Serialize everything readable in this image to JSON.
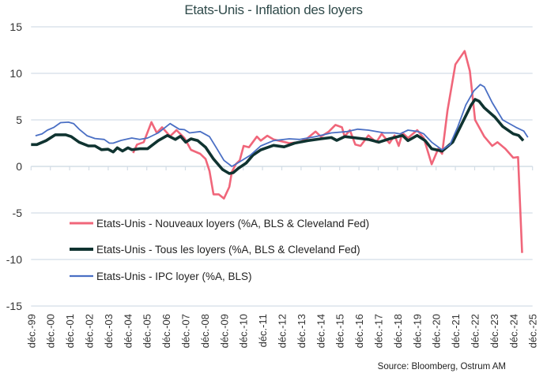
{
  "chart_data": {
    "type": "line",
    "title": "Etats-Unis - Inflation  des loyers",
    "source": "Source: Bloomberg, Ostrum AM",
    "ylim": [
      -15,
      15
    ],
    "yticks": [
      15,
      10,
      5,
      0,
      -5,
      -10,
      -15
    ],
    "xlim": [
      1999.92,
      2025.92
    ],
    "xtick_labels": [
      "déc.-99",
      "déc.-00",
      "déc.-01",
      "déc.-02",
      "déc.-03",
      "déc.-04",
      "déc.-05",
      "déc.-06",
      "déc.-07",
      "déc.-08",
      "déc.-09",
      "déc.-10",
      "déc.-11",
      "déc.-12",
      "déc.-13",
      "déc.-14",
      "déc.-15",
      "déc.-16",
      "déc.-17",
      "déc.-18",
      "déc.-19",
      "déc.-20",
      "déc.-21",
      "déc.-22",
      "déc.-23",
      "déc.-24",
      "déc.-25"
    ],
    "grid": "horizontal",
    "legend_placement": "bottom-left inside",
    "series": [
      {
        "name": "Etats-Unis - Nouveaux loyers (%A, BLS & Cleveland Fed)",
        "color": "#f0667a",
        "points": [
          [
            2005.21,
            1.44
          ],
          [
            2005.41,
            2.35
          ],
          [
            2005.76,
            2.6
          ],
          [
            2006.16,
            4.75
          ],
          [
            2006.44,
            3.6
          ],
          [
            2006.71,
            4.2
          ],
          [
            2007.13,
            3.25
          ],
          [
            2007.46,
            3.9
          ],
          [
            2007.87,
            3.05
          ],
          [
            2008.21,
            1.78
          ],
          [
            2008.69,
            1.36
          ],
          [
            2008.97,
            0.8
          ],
          [
            2009.17,
            -0.48
          ],
          [
            2009.38,
            -3.0
          ],
          [
            2009.65,
            -3.0
          ],
          [
            2009.92,
            -3.45
          ],
          [
            2010.2,
            -2.2
          ],
          [
            2010.33,
            -0.6
          ],
          [
            2010.53,
            0.23
          ],
          [
            2010.74,
            0.65
          ],
          [
            2010.94,
            2.2
          ],
          [
            2011.22,
            2.06
          ],
          [
            2011.63,
            3.2
          ],
          [
            2011.83,
            2.77
          ],
          [
            2012.17,
            3.3
          ],
          [
            2012.49,
            2.9
          ],
          [
            2013.31,
            2.5
          ],
          [
            2013.85,
            2.6
          ],
          [
            2014.26,
            3.05
          ],
          [
            2014.67,
            3.75
          ],
          [
            2014.95,
            3.2
          ],
          [
            2015.36,
            3.75
          ],
          [
            2015.7,
            4.46
          ],
          [
            2016.04,
            4.2
          ],
          [
            2016.18,
            3.2
          ],
          [
            2016.45,
            3.9
          ],
          [
            2016.73,
            2.35
          ],
          [
            2017.0,
            2.2
          ],
          [
            2017.41,
            3.33
          ],
          [
            2017.82,
            2.6
          ],
          [
            2018.1,
            3.5
          ],
          [
            2018.5,
            2.5
          ],
          [
            2018.77,
            3.33
          ],
          [
            2018.98,
            2.2
          ],
          [
            2019.18,
            3.6
          ],
          [
            2019.46,
            3.05
          ],
          [
            2019.94,
            3.9
          ],
          [
            2020.28,
            3.05
          ],
          [
            2020.69,
            0.23
          ],
          [
            2021.03,
            1.9
          ],
          [
            2021.23,
            1.36
          ],
          [
            2021.51,
            6.0
          ],
          [
            2021.92,
            10.96
          ],
          [
            2022.4,
            12.4
          ],
          [
            2022.67,
            10.25
          ],
          [
            2022.94,
            5.0
          ],
          [
            2023.42,
            3.2
          ],
          [
            2023.83,
            2.2
          ],
          [
            2024.1,
            2.6
          ],
          [
            2024.51,
            1.9
          ],
          [
            2024.92,
            0.93
          ],
          [
            2025.17,
            1.0
          ],
          [
            2025.38,
            -9.3
          ]
        ]
      },
      {
        "name": "Etats-Unis - Tous les loyers (%A, BLS & Cleveland Fed)",
        "color": "#0f3330",
        "points": [
          [
            1999.92,
            2.35
          ],
          [
            2000.22,
            2.35
          ],
          [
            2000.7,
            2.77
          ],
          [
            2001.18,
            3.4
          ],
          [
            2001.72,
            3.4
          ],
          [
            2002.0,
            3.2
          ],
          [
            2002.41,
            2.6
          ],
          [
            2002.89,
            2.2
          ],
          [
            2003.23,
            2.2
          ],
          [
            2003.57,
            1.8
          ],
          [
            2003.91,
            1.85
          ],
          [
            2004.18,
            1.55
          ],
          [
            2004.39,
            2.0
          ],
          [
            2004.66,
            1.65
          ],
          [
            2004.94,
            2.0
          ],
          [
            2005.14,
            1.8
          ],
          [
            2005.55,
            1.9
          ],
          [
            2005.96,
            1.9
          ],
          [
            2006.51,
            2.77
          ],
          [
            2006.99,
            3.33
          ],
          [
            2007.4,
            2.9
          ],
          [
            2007.67,
            3.25
          ],
          [
            2007.94,
            2.6
          ],
          [
            2008.21,
            2.97
          ],
          [
            2008.56,
            2.77
          ],
          [
            2008.97,
            2.06
          ],
          [
            2009.38,
            0.8
          ],
          [
            2009.85,
            -0.34
          ],
          [
            2010.2,
            -0.76
          ],
          [
            2010.4,
            -0.68
          ],
          [
            2010.67,
            -0.2
          ],
          [
            2011.08,
            0.37
          ],
          [
            2011.42,
            1.2
          ],
          [
            2011.83,
            1.78
          ],
          [
            2012.49,
            2.26
          ],
          [
            2013.04,
            2.1
          ],
          [
            2013.58,
            2.5
          ],
          [
            2014.26,
            2.77
          ],
          [
            2014.95,
            2.97
          ],
          [
            2015.49,
            3.1
          ],
          [
            2015.77,
            2.8
          ],
          [
            2016.18,
            3.2
          ],
          [
            2016.59,
            3.1
          ],
          [
            2017.41,
            2.9
          ],
          [
            2017.95,
            2.6
          ],
          [
            2018.5,
            2.97
          ],
          [
            2019.18,
            3.33
          ],
          [
            2019.46,
            2.77
          ],
          [
            2019.94,
            3.33
          ],
          [
            2020.35,
            2.77
          ],
          [
            2020.69,
            1.9
          ],
          [
            2021.23,
            1.64
          ],
          [
            2021.78,
            2.6
          ],
          [
            2022.33,
            4.9
          ],
          [
            2022.74,
            6.6
          ],
          [
            2022.94,
            7.2
          ],
          [
            2023.15,
            7.0
          ],
          [
            2023.42,
            6.3
          ],
          [
            2023.97,
            5.3
          ],
          [
            2024.37,
            4.3
          ],
          [
            2024.92,
            3.5
          ],
          [
            2025.2,
            3.33
          ],
          [
            2025.44,
            2.77
          ]
        ]
      },
      {
        "name": "Etats-Unis - IPC loyer (%A, BLS)",
        "color": "#4a6fc4",
        "points": [
          [
            2000.15,
            3.3
          ],
          [
            2000.49,
            3.5
          ],
          [
            2000.77,
            3.9
          ],
          [
            2001.11,
            4.2
          ],
          [
            2001.45,
            4.7
          ],
          [
            2001.86,
            4.75
          ],
          [
            2002.13,
            4.6
          ],
          [
            2002.41,
            4.0
          ],
          [
            2002.82,
            3.3
          ],
          [
            2003.23,
            3.0
          ],
          [
            2003.71,
            2.9
          ],
          [
            2003.98,
            2.5
          ],
          [
            2004.18,
            2.5
          ],
          [
            2004.59,
            2.8
          ],
          [
            2005.14,
            3.05
          ],
          [
            2005.55,
            2.9
          ],
          [
            2005.96,
            3.05
          ],
          [
            2006.51,
            3.6
          ],
          [
            2007.13,
            4.6
          ],
          [
            2007.6,
            4.0
          ],
          [
            2007.87,
            3.95
          ],
          [
            2008.14,
            3.6
          ],
          [
            2008.69,
            3.75
          ],
          [
            2009.17,
            3.2
          ],
          [
            2009.51,
            2.06
          ],
          [
            2009.92,
            0.65
          ],
          [
            2010.33,
            0.0
          ],
          [
            2010.74,
            0.5
          ],
          [
            2011.29,
            1.2
          ],
          [
            2011.83,
            2.2
          ],
          [
            2012.49,
            2.77
          ],
          [
            2013.31,
            2.97
          ],
          [
            2013.85,
            2.9
          ],
          [
            2014.67,
            3.2
          ],
          [
            2015.49,
            3.6
          ],
          [
            2016.31,
            3.75
          ],
          [
            2016.86,
            4.0
          ],
          [
            2017.41,
            3.9
          ],
          [
            2018.23,
            3.6
          ],
          [
            2018.77,
            3.6
          ],
          [
            2019.05,
            3.5
          ],
          [
            2019.46,
            3.9
          ],
          [
            2020.0,
            3.75
          ],
          [
            2020.28,
            3.5
          ],
          [
            2020.69,
            2.6
          ],
          [
            2021.23,
            1.78
          ],
          [
            2021.64,
            2.35
          ],
          [
            2022.05,
            4.3
          ],
          [
            2022.46,
            6.6
          ],
          [
            2022.87,
            8.1
          ],
          [
            2023.21,
            8.8
          ],
          [
            2023.42,
            8.55
          ],
          [
            2023.83,
            6.86
          ],
          [
            2024.37,
            5.0
          ],
          [
            2025.06,
            4.2
          ],
          [
            2025.47,
            3.8
          ],
          [
            2025.68,
            3.13
          ]
        ]
      }
    ]
  }
}
